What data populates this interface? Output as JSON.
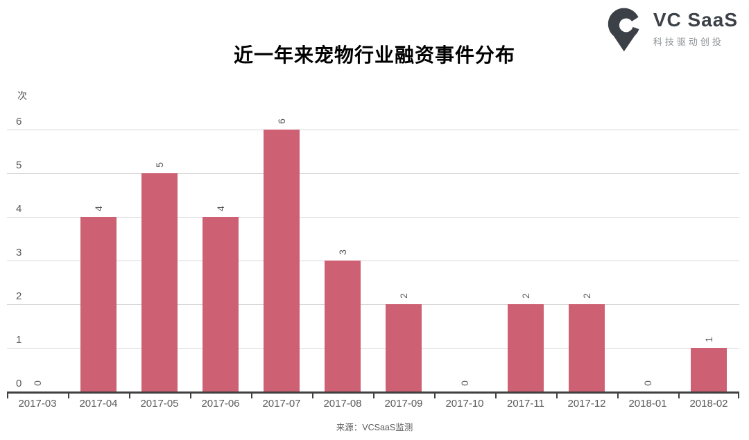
{
  "header": {
    "title": "近一年来宠物行业融资事件分布"
  },
  "logo": {
    "brand": "VC SaaS",
    "tagline": "科技驱动创投",
    "brand_color": "#3b4146",
    "tagline_color": "#8b9196"
  },
  "chart_data": {
    "type": "bar",
    "title": "近一年来宠物行业融资事件分布",
    "unit_label": "次",
    "categories": [
      "2017-03",
      "2017-04",
      "2017-05",
      "2017-06",
      "2017-07",
      "2017-08",
      "2017-09",
      "2017-10",
      "2017-11",
      "2017-12",
      "2018-01",
      "2018-02"
    ],
    "values": [
      0,
      4,
      5,
      4,
      6,
      3,
      2,
      0,
      2,
      2,
      0,
      1
    ],
    "ylim": [
      0,
      6
    ],
    "yticks": [
      6,
      5,
      4,
      3,
      2,
      1,
      0
    ],
    "grid": true,
    "legend": false,
    "data_labels_rotated": true,
    "bar_color": "#cd6173",
    "gridline_color": "#d7d7d7",
    "axis_color": "#404040",
    "label_color": "#595959"
  },
  "footer": {
    "source": "来源：VCSaaS监测"
  }
}
